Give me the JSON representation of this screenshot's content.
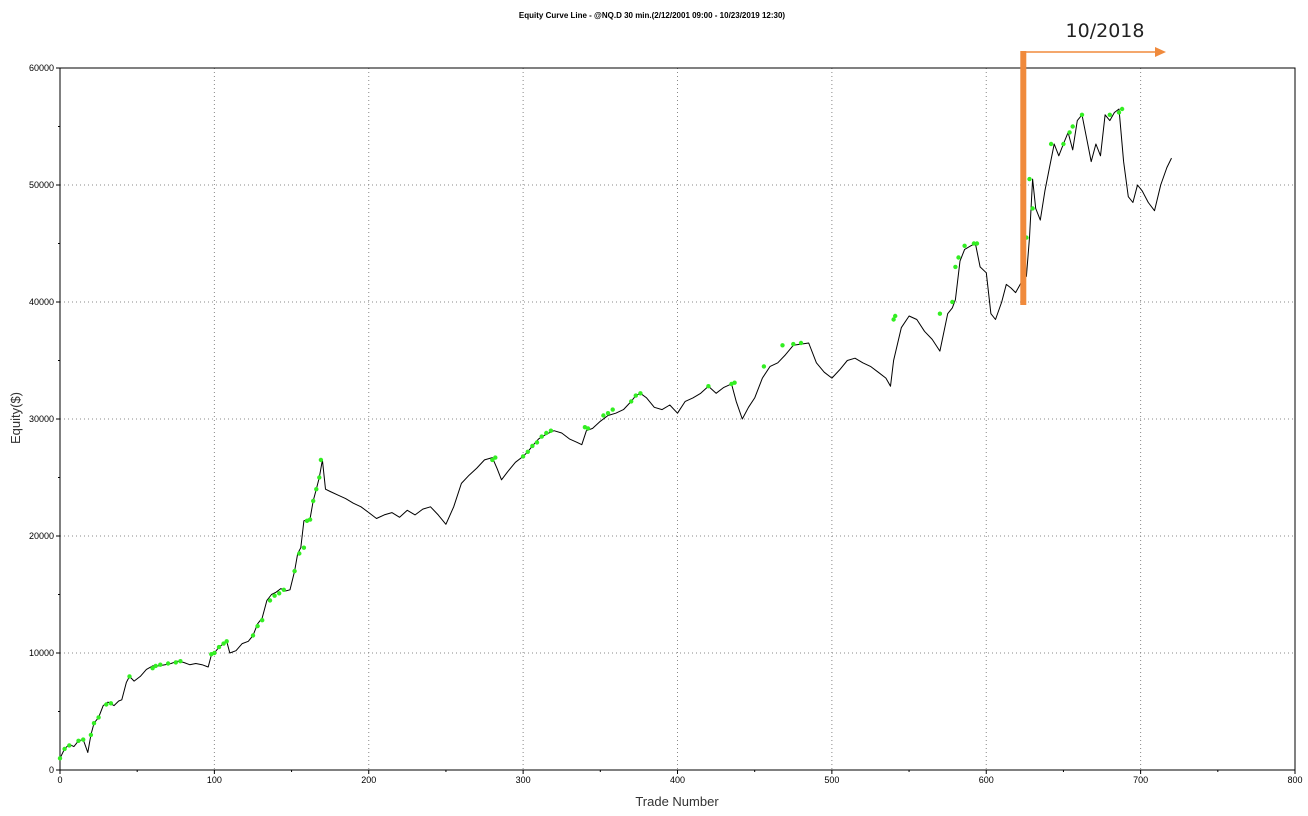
{
  "chart_data": {
    "type": "line",
    "title": "Equity Curve Line - @NQ.D 30 min.(2/12/2001 09:00 - 10/23/2019 12:30)",
    "xlabel": "Trade Number",
    "ylabel": "Equity($)",
    "xlim": [
      0,
      800
    ],
    "ylim": [
      0,
      60000
    ],
    "x_ticks": [
      "0",
      "100",
      "200",
      "300",
      "400",
      "500",
      "600",
      "700",
      "800"
    ],
    "y_ticks": [
      "0",
      "10000",
      "20000",
      "30000",
      "40000",
      "50000",
      "60000"
    ],
    "grid": true,
    "colors": {
      "line": "#000000",
      "highs": "#33ee22",
      "marker": "#f08a3c"
    },
    "series": [
      {
        "x": [
          0,
          3,
          6,
          9,
          12,
          15,
          18,
          20,
          22,
          25,
          28,
          31,
          35,
          38,
          40,
          43,
          45,
          48,
          52,
          56,
          60,
          64,
          68,
          72,
          76,
          80,
          84,
          88,
          92,
          96,
          98,
          100,
          103,
          106,
          108,
          110,
          114,
          118,
          122,
          125,
          128,
          131,
          134,
          137,
          140,
          143,
          146,
          149,
          152,
          154,
          156,
          158,
          160,
          162,
          164,
          166,
          168,
          170,
          172,
          175,
          180,
          185,
          190,
          195,
          200,
          205,
          210,
          215,
          220,
          225,
          230,
          235,
          240,
          245,
          250,
          255,
          260,
          265,
          270,
          275,
          280,
          283,
          286,
          290,
          295,
          300,
          303,
          306,
          310,
          315,
          320,
          325,
          330,
          335,
          338,
          341,
          345,
          350,
          355,
          360,
          365,
          370,
          373,
          376,
          380,
          385,
          390,
          395,
          400,
          405,
          410,
          415,
          420,
          425,
          430,
          435,
          438,
          442,
          446,
          450,
          455,
          460,
          465,
          470,
          475,
          480,
          485,
          490,
          495,
          500,
          505,
          510,
          515,
          520,
          525,
          530,
          535,
          538,
          540,
          545,
          550,
          555,
          560,
          565,
          570,
          575,
          578,
          580,
          583,
          586,
          590,
          593,
          596,
          600,
          603,
          606,
          610,
          613,
          616,
          619,
          622,
          624,
          626,
          628,
          630,
          632,
          635,
          638,
          641,
          644,
          647,
          650,
          653,
          656,
          659,
          662,
          665,
          668,
          671,
          674,
          677,
          680,
          683,
          686,
          689,
          692,
          695,
          698,
          701,
          705,
          709,
          713,
          717,
          720
        ],
        "y": [
          1000,
          1800,
          2200,
          2000,
          2500,
          2600,
          1500,
          3000,
          4000,
          4500,
          5500,
          5800,
          5500,
          5900,
          6000,
          7500,
          8000,
          7600,
          8000,
          8600,
          8900,
          8900,
          9000,
          9100,
          9300,
          9200,
          9000,
          9100,
          9000,
          8800,
          9800,
          10000,
          10500,
          10800,
          11000,
          10000,
          10200,
          10800,
          11000,
          11500,
          12500,
          13000,
          14500,
          15000,
          15200,
          15500,
          15300,
          15400,
          17000,
          18500,
          19000,
          21300,
          21400,
          21500,
          23000,
          24000,
          25000,
          26500,
          24000,
          23800,
          23500,
          23200,
          22800,
          22500,
          22000,
          21500,
          21800,
          22000,
          21600,
          22200,
          21800,
          22300,
          22500,
          21800,
          21000,
          22500,
          24500,
          25200,
          25800,
          26500,
          26700,
          25800,
          24800,
          25500,
          26300,
          26800,
          27200,
          27700,
          28300,
          28700,
          29000,
          28800,
          28300,
          28000,
          27800,
          29000,
          29200,
          29800,
          30300,
          30500,
          30800,
          31500,
          32000,
          32200,
          31800,
          31000,
          30800,
          31200,
          30500,
          31500,
          31800,
          32200,
          32800,
          32200,
          32700,
          33000,
          31500,
          30000,
          31000,
          31800,
          33500,
          34500,
          34800,
          35500,
          36300,
          36400,
          36500,
          34800,
          34000,
          33500,
          34200,
          35000,
          35200,
          34800,
          34500,
          34000,
          33500,
          32800,
          35000,
          37800,
          38800,
          38500,
          37500,
          36800,
          35800,
          39000,
          39500,
          40200,
          43500,
          44500,
          44800,
          45000,
          43000,
          42500,
          39000,
          38500,
          40000,
          41500,
          41200,
          40800,
          41500,
          42000,
          42200,
          45500,
          50500,
          48000,
          47000,
          49500,
          51500,
          53500,
          52500,
          53500,
          54500,
          53000,
          55500,
          56000,
          54000,
          52000,
          53500,
          52500,
          56000,
          55500,
          56200,
          56500,
          52000,
          49000,
          48500,
          50000,
          49500,
          48500,
          47800,
          50000,
          51500,
          52300
        ]
      },
      {
        "name": "",
        "type": "scatter",
        "x": [
          0,
          3,
          6,
          12,
          15,
          20,
          22,
          25,
          30,
          33,
          45,
          60,
          62,
          65,
          70,
          75,
          78,
          98,
          100,
          103,
          106,
          108,
          125,
          128,
          131,
          136,
          139,
          142,
          145,
          152,
          155,
          158,
          160,
          162,
          164,
          166,
          168,
          169,
          280,
          282,
          300,
          303,
          306,
          309,
          312,
          315,
          318,
          340,
          342,
          352,
          355,
          358,
          370,
          373,
          376,
          420,
          435,
          437,
          456,
          468,
          475,
          480,
          540,
          541,
          570,
          578,
          580,
          582,
          586,
          592,
          594,
          626,
          628,
          630,
          642,
          650,
          654,
          656,
          662,
          680,
          686,
          688
        ],
        "y": [
          1000,
          1800,
          2100,
          2500,
          2600,
          3000,
          4000,
          4500,
          5600,
          5700,
          8000,
          8700,
          8900,
          9000,
          9100,
          9200,
          9300,
          9900,
          10000,
          10500,
          10800,
          11000,
          11500,
          12300,
          12800,
          14500,
          14900,
          15100,
          15400,
          17000,
          18500,
          19000,
          21300,
          21400,
          23000,
          24000,
          25000,
          26500,
          26500,
          26700,
          26800,
          27200,
          27700,
          28000,
          28500,
          28800,
          29000,
          29300,
          29200,
          30300,
          30500,
          30800,
          31500,
          32000,
          32200,
          32800,
          33000,
          33100,
          34500,
          36300,
          36400,
          36500,
          38500,
          38800,
          39000,
          40000,
          43000,
          43800,
          44800,
          45000,
          45000,
          45500,
          50500,
          48000,
          53500,
          53500,
          54500,
          55000,
          56000,
          56000,
          56200,
          56500
        ]
      }
    ],
    "annotations": [
      {
        "text": "10/2018",
        "x": 624
      }
    ]
  }
}
